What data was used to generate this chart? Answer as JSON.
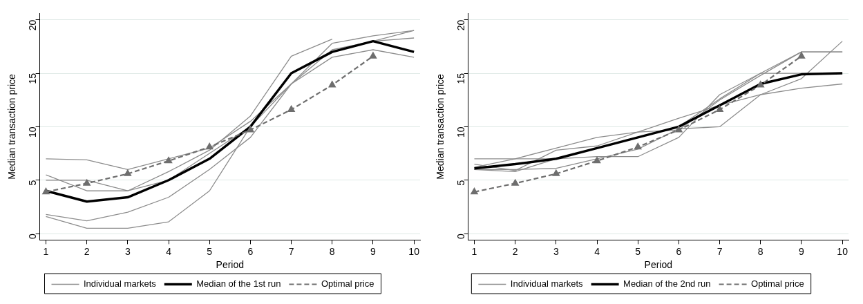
{
  "chart_data": [
    {
      "type": "line",
      "xlabel": "Period",
      "ylabel": "Median transaction price",
      "x": [
        1,
        2,
        3,
        4,
        5,
        6,
        7,
        8,
        9,
        10
      ],
      "xlim": [
        0.85,
        10.15
      ],
      "xticks": [
        1,
        2,
        3,
        4,
        5,
        6,
        7,
        8,
        9,
        10
      ],
      "ylim": [
        -0.6,
        20.6
      ],
      "yticks": [
        0,
        5,
        10,
        15,
        20
      ],
      "grid": "y",
      "legend": "bottom",
      "marker": "none",
      "line_style": "solid",
      "series": [
        {
          "name": "Individual markets",
          "color": "#8c8c8c",
          "values": [
            7,
            6.9,
            6,
            7,
            8,
            10.5,
            14,
            17.2,
            18,
            19
          ]
        },
        {
          "color": "#8c8c8c",
          "values": [
            5.5,
            4,
            4,
            5.8,
            7.8,
            11,
            16.6,
            18.2,
            null,
            null
          ]
        },
        {
          "color": "#8c8c8c",
          "values": [
            5,
            5,
            4,
            5,
            7.5,
            10,
            14,
            17.8,
            18.5,
            19
          ]
        },
        {
          "color": "#8c8c8c",
          "values": [
            1.8,
            1.2,
            2,
            3.4,
            6,
            9,
            14,
            16.5,
            17.2,
            16.5
          ]
        },
        {
          "color": "#8c8c8c",
          "values": [
            1.6,
            0.5,
            0.5,
            1.1,
            4,
            10,
            15,
            17,
            18,
            18.3
          ]
        },
        {
          "name": "Median of the 1st run",
          "color": "#000000",
          "values": [
            4,
            3,
            3.4,
            5,
            7,
            10,
            15,
            17,
            18,
            17
          ]
        },
        {
          "name": "Optimal price",
          "color": "#6e6e6e",
          "marker": "triangle",
          "line_style": "dashed",
          "values": [
            3.9,
            4.7,
            5.6,
            6.8,
            8.1,
            9.7,
            11.6,
            13.9,
            16.6,
            null
          ]
        }
      ]
    },
    {
      "type": "line",
      "xlabel": "Period",
      "ylabel": "Median transaction price",
      "x": [
        1,
        2,
        3,
        4,
        5,
        6,
        7,
        8,
        9,
        10
      ],
      "xlim": [
        0.85,
        10.15
      ],
      "xticks": [
        1,
        2,
        3,
        4,
        5,
        6,
        7,
        8,
        9,
        10
      ],
      "ylim": [
        -0.6,
        20.6
      ],
      "yticks": [
        0,
        5,
        10,
        15,
        20
      ],
      "grid": "y",
      "legend": "bottom",
      "marker": "none",
      "line_style": "solid",
      "series": [
        {
          "name": "Individual markets",
          "color": "#8c8c8c",
          "values": [
            7,
            7,
            7,
            7.2,
            7.2,
            9,
            13,
            15,
            17,
            17
          ]
        },
        {
          "color": "#8c8c8c",
          "values": [
            6.5,
            5.9,
            7.8,
            8.2,
            9.5,
            10.8,
            12,
            13,
            13.6,
            14
          ]
        },
        {
          "color": "#8c8c8c",
          "values": [
            6,
            6,
            6.1,
            7,
            7.9,
            9.8,
            10,
            13,
            14.5,
            18
          ]
        },
        {
          "color": "#8c8c8c",
          "values": [
            6.2,
            7,
            8,
            9,
            9.5,
            9.7,
            12.5,
            14.8,
            17,
            17
          ]
        },
        {
          "color": "#8c8c8c",
          "values": [
            6,
            5.8,
            7,
            8,
            9,
            10,
            12.6,
            15,
            15,
            15
          ]
        },
        {
          "name": "Median of the 2nd run",
          "color": "#000000",
          "values": [
            6.1,
            6.5,
            7,
            8,
            9,
            10,
            12,
            14,
            14.9,
            15
          ]
        },
        {
          "name": "Optimal price",
          "color": "#6e6e6e",
          "marker": "triangle",
          "line_style": "dashed",
          "values": [
            3.9,
            4.7,
            5.6,
            6.8,
            8.1,
            9.7,
            11.6,
            13.9,
            16.6,
            null
          ]
        }
      ]
    }
  ]
}
